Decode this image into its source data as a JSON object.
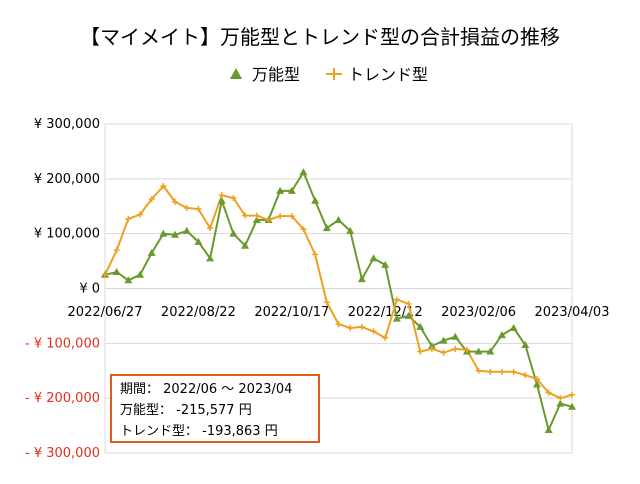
{
  "chart_data": {
    "type": "line",
    "title": "【マイメイト】万能型とトレンド型の合計損益の推移",
    "x_tick_labels": [
      "2022/06/27",
      "2022/08/22",
      "2022/10/17",
      "2022/12/12",
      "2023/02/06",
      "2023/04/03"
    ],
    "y_tick_labels": [
      "¥ 300,000",
      "¥ 200,000",
      "¥ 100,000",
      "¥ 0",
      "- ¥ 100,000",
      "- ¥ 200,000",
      "- ¥ 300,000"
    ],
    "ylim": [
      -300000,
      300000
    ],
    "grid": true,
    "legend_position": "top",
    "series": [
      {
        "name": "万能型",
        "color": "#6a9a2e",
        "marker": "triangle",
        "values": [
          25000,
          30000,
          15000,
          25000,
          65000,
          100000,
          98000,
          105000,
          85000,
          55000,
          160000,
          100000,
          78000,
          125000,
          125000,
          178000,
          178000,
          212000,
          160000,
          110000,
          125000,
          105000,
          17000,
          55000,
          43000,
          -55000,
          -50000,
          -70000,
          -105000,
          -95000,
          -88000,
          -115000,
          -115000,
          -115000,
          -85000,
          -72000,
          -103000,
          -175000,
          -258000,
          -210000,
          -215577
        ]
      },
      {
        "name": "トレンド型",
        "color": "#f0a020",
        "marker": "plus",
        "values": [
          25000,
          70000,
          127000,
          135000,
          163000,
          187000,
          158000,
          147000,
          145000,
          110000,
          170000,
          165000,
          133000,
          133000,
          125000,
          132000,
          132000,
          108000,
          62000,
          -25000,
          -65000,
          -72000,
          -70000,
          -78000,
          -90000,
          -20000,
          -28000,
          -115000,
          -110000,
          -117000,
          -110000,
          -112000,
          -150000,
          -152000,
          -152000,
          -152000,
          -158000,
          -165000,
          -190000,
          -200000,
          -193863
        ]
      }
    ]
  },
  "summary_box": {
    "period": "期間： 2022/06 ～ 2023/04",
    "line1": "万能型： -215,577 円",
    "line2": "トレンド型： -193,863 円"
  }
}
